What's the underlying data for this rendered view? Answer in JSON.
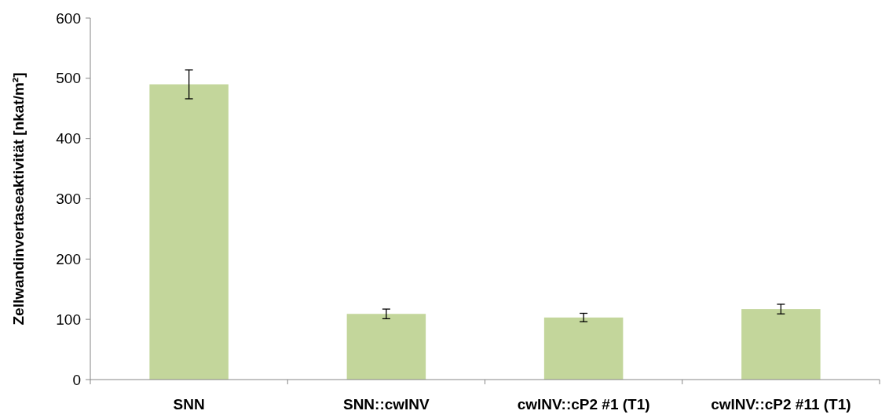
{
  "chart_data": {
    "type": "bar",
    "ylabel": "Zellwandinvertaseaktivität [nkat/m²]",
    "categories": [
      "SNN",
      "SNN::cwINV",
      "cwINV::cP2 #1 (T1)",
      "cwINV::cP2 #11 (T1)"
    ],
    "values": [
      490,
      109,
      103,
      117
    ],
    "errors": [
      24,
      8,
      7,
      8
    ],
    "color": "#c3d69b",
    "ylim": [
      0,
      600
    ],
    "yticks": [
      0,
      100,
      200,
      300,
      400,
      500,
      600
    ],
    "grid": false
  }
}
